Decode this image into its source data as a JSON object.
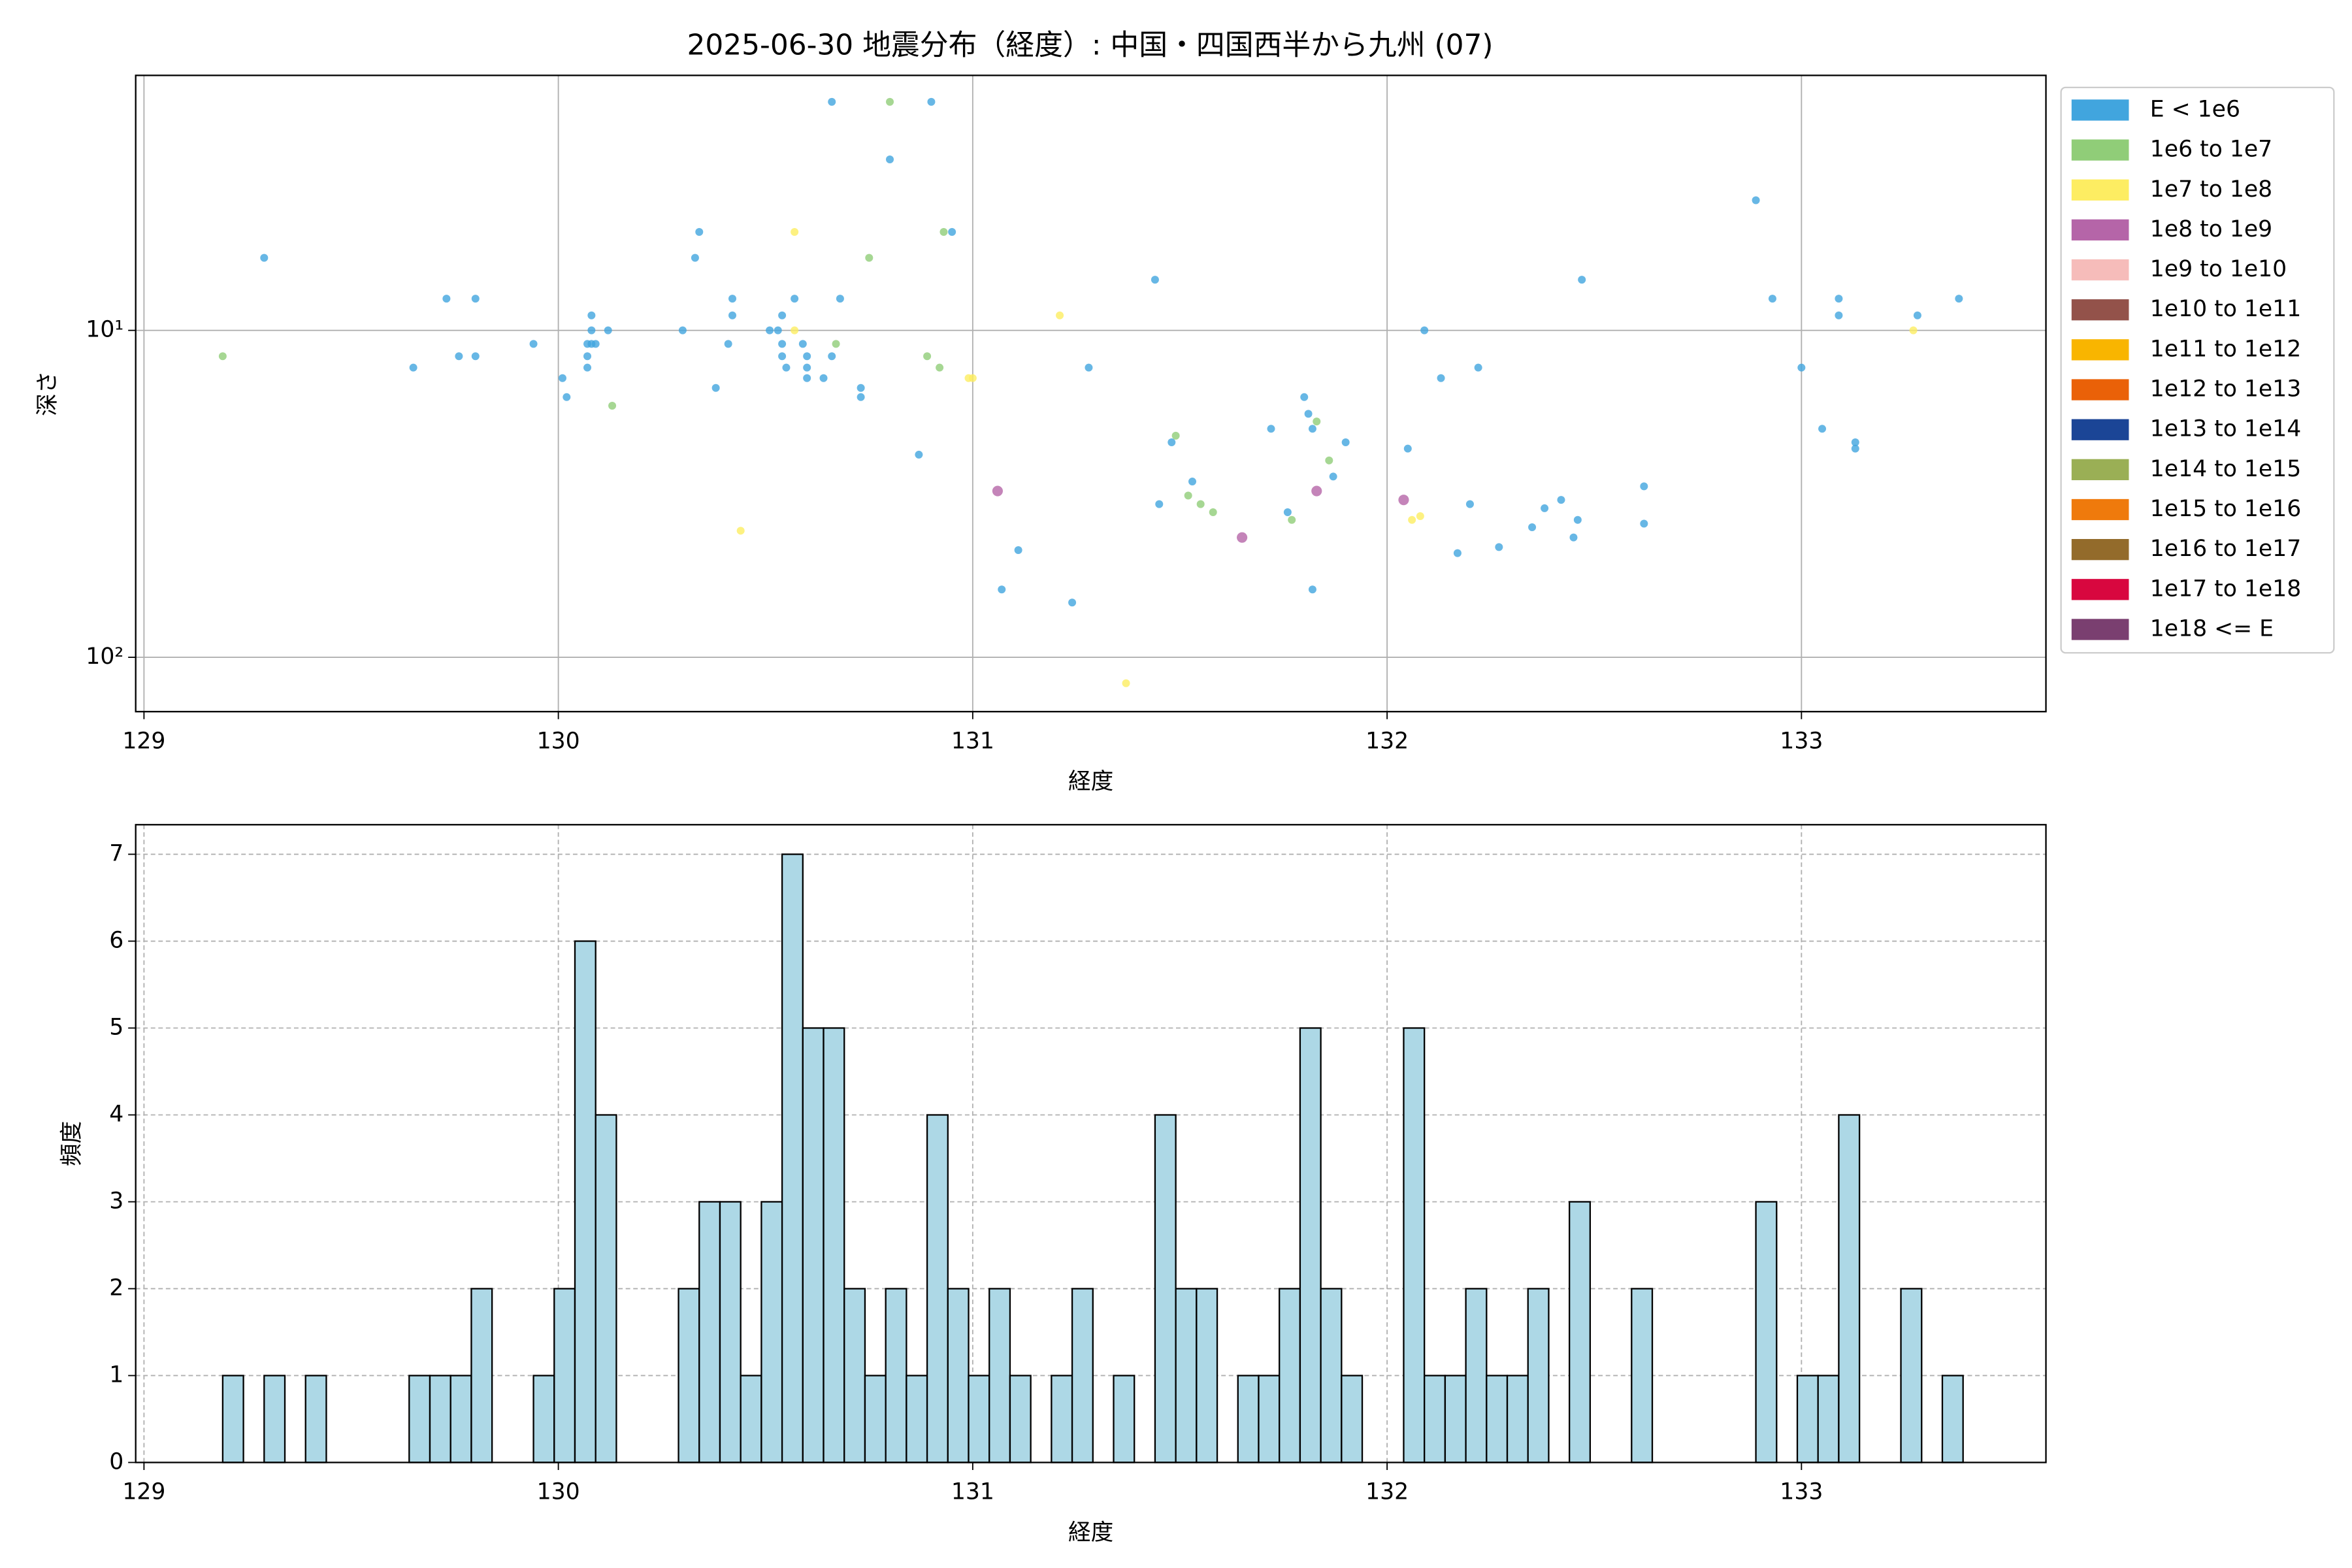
{
  "chart_data": [
    {
      "type": "scatter",
      "title": "2025-06-30 地震分布（経度）: 中国・四国西半から九州 (07)",
      "xlabel": "経度",
      "ylabel": "深さ",
      "xlim": [
        128.98,
        133.59
      ],
      "ylim": [
        1.66,
        146.6
      ],
      "log_y": true,
      "y_inverted": true,
      "xticks": [
        129,
        130,
        131,
        132,
        133
      ],
      "yticks": [
        {
          "value": 10,
          "label": "10¹"
        },
        {
          "value": 100,
          "label": "10²"
        }
      ],
      "grid": true,
      "legend_position": "outside upper right",
      "series": [
        {
          "name": "E < 1e6",
          "color": "#41a5de",
          "x": [
            129.29,
            129.65,
            129.73,
            129.76,
            129.8,
            129.8,
            129.94,
            130.01,
            130.02,
            130.07,
            130.07,
            130.08,
            130.08,
            130.07,
            130.08,
            130.09,
            130.12,
            130.3,
            130.33,
            130.34,
            130.38,
            130.41,
            130.42,
            130.42,
            130.51,
            130.53,
            130.54,
            130.54,
            130.54,
            130.55,
            130.57,
            130.59,
            130.6,
            130.6,
            130.6,
            130.64,
            130.66,
            130.68,
            130.73,
            130.73,
            130.66,
            130.8,
            130.87,
            130.9,
            130.95,
            131.07,
            131.11,
            131.24,
            131.28,
            131.44,
            131.45,
            131.48,
            131.53,
            131.72,
            131.76,
            131.8,
            131.81,
            131.82,
            131.82,
            131.87,
            131.9,
            132.05,
            132.09,
            132.13,
            132.17,
            132.2,
            132.22,
            132.27,
            132.35,
            132.42,
            132.38,
            132.45,
            132.46,
            132.47,
            132.62,
            132.62,
            132.89,
            132.93,
            133.0,
            133.05,
            133.09,
            133.09,
            133.13,
            133.13,
            133.28,
            133.38
          ],
          "values": [
            6,
            13,
            8,
            12,
            8,
            12,
            11,
            14,
            16,
            12,
            13,
            9,
            10,
            11,
            11,
            11,
            10,
            10,
            6,
            5,
            15,
            11,
            9,
            8,
            10,
            10,
            9,
            11,
            12,
            13,
            8,
            11,
            12,
            13,
            14,
            14,
            12,
            8,
            15,
            16,
            2,
            3,
            24,
            2,
            5,
            62,
            47,
            68,
            13,
            7,
            34,
            22,
            29,
            20,
            36,
            16,
            18,
            20,
            62,
            28,
            22,
            23,
            10,
            14,
            48,
            34,
            13,
            46,
            40,
            33,
            35,
            43,
            38,
            7,
            30,
            39,
            4,
            8,
            13,
            20,
            8,
            9,
            22,
            23,
            9,
            8
          ]
        },
        {
          "name": "1e6 to 1e7",
          "color": "#90cd78",
          "x": [
            129.19,
            130.13,
            130.67,
            130.75,
            130.8,
            130.89,
            130.92,
            130.93,
            131.49,
            131.52,
            131.55,
            131.58,
            131.77,
            131.83,
            131.86
          ],
          "values": [
            12,
            17,
            11,
            6,
            2,
            12,
            13,
            5,
            21,
            32,
            34,
            36,
            38,
            19,
            25
          ]
        },
        {
          "name": "1e7 to 1e8",
          "color": "#fded62",
          "x": [
            130.44,
            130.57,
            130.57,
            130.99,
            131.0,
            131.21,
            131.37,
            132.06,
            132.08,
            133.27
          ],
          "values": [
            41,
            10,
            5,
            14,
            14,
            9,
            120,
            38,
            37,
            10
          ]
        },
        {
          "name": "1e8 to 1e9",
          "color": "#b565a8",
          "x": [
            131.06,
            131.65,
            131.83,
            132.04
          ],
          "values": [
            31,
            43,
            31,
            33
          ]
        },
        {
          "name": "1e9 to 1e10",
          "color": "#f6bcba",
          "x": [],
          "values": []
        },
        {
          "name": "1e10 to 1e11",
          "color": "#93524a",
          "x": [],
          "values": []
        },
        {
          "name": "1e11 to 1e12",
          "color": "#f9b500",
          "x": [],
          "values": []
        },
        {
          "name": "1e12 to 1e13",
          "color": "#ea6108",
          "x": [],
          "values": []
        },
        {
          "name": "1e13 to 1e14",
          "color": "#1b4596",
          "x": [],
          "values": []
        },
        {
          "name": "1e14 to 1e15",
          "color": "#9aaf55",
          "x": [],
          "values": []
        },
        {
          "name": "1e15 to 1e16",
          "color": "#ef7a0c",
          "x": [],
          "values": []
        },
        {
          "name": "1e16 to 1e17",
          "color": "#936b2b",
          "x": [],
          "values": []
        },
        {
          "name": "1e17 to 1e18",
          "color": "#d8073f",
          "x": [],
          "values": []
        },
        {
          "name": "1e18 <= E",
          "color": "#7a3f70",
          "x": [],
          "values": []
        }
      ]
    },
    {
      "type": "histogram",
      "xlabel": "経度",
      "ylabel": "頻度",
      "color": "#add8e6",
      "edgecolor": "#000000",
      "xlim": [
        128.98,
        133.59
      ],
      "ylim": [
        0,
        7.34
      ],
      "xticks": [
        129,
        130,
        131,
        132,
        133
      ],
      "yticks": [
        0,
        1,
        2,
        3,
        4,
        5,
        6,
        7
      ],
      "grid": true,
      "bins": [
        129.19,
        129.24,
        129.29,
        129.34,
        129.39,
        129.44,
        129.49,
        129.54,
        129.59,
        129.64,
        129.69,
        129.74,
        129.79,
        129.84,
        129.89,
        129.94,
        129.99,
        130.04,
        130.09,
        130.14,
        130.19,
        130.24,
        130.29,
        130.34,
        130.39,
        130.44,
        130.49,
        130.54,
        130.59,
        130.64,
        130.69,
        130.74,
        130.79,
        130.84,
        130.89,
        130.94,
        130.99,
        131.04,
        131.09,
        131.14,
        131.19,
        131.24,
        131.29,
        131.34,
        131.39,
        131.44,
        131.49,
        131.54,
        131.59,
        131.64,
        131.69,
        131.74,
        131.79,
        131.84,
        131.89,
        131.94,
        131.99,
        132.04,
        132.09,
        132.14,
        132.19,
        132.24,
        132.29,
        132.34,
        132.39,
        132.44,
        132.49,
        132.54,
        132.59,
        132.64,
        132.69,
        132.74,
        132.79,
        132.84,
        132.89,
        132.94,
        132.99,
        133.04,
        133.09,
        133.14,
        133.19,
        133.24,
        133.29,
        133.34,
        133.39
      ],
      "counts": [
        1,
        0,
        1,
        0,
        1,
        0,
        0,
        0,
        0,
        1,
        1,
        1,
        2,
        0,
        0,
        1,
        2,
        6,
        4,
        0,
        0,
        0,
        2,
        3,
        3,
        1,
        3,
        7,
        5,
        5,
        2,
        1,
        2,
        1,
        4,
        2,
        1,
        2,
        1,
        0,
        1,
        2,
        0,
        1,
        0,
        4,
        2,
        2,
        0,
        1,
        1,
        2,
        5,
        2,
        1,
        0,
        0,
        5,
        1,
        1,
        2,
        1,
        1,
        2,
        0,
        3,
        0,
        0,
        2,
        0,
        0,
        0,
        0,
        0,
        3,
        0,
        1,
        1,
        4,
        0,
        0,
        2,
        0,
        1
      ]
    }
  ]
}
